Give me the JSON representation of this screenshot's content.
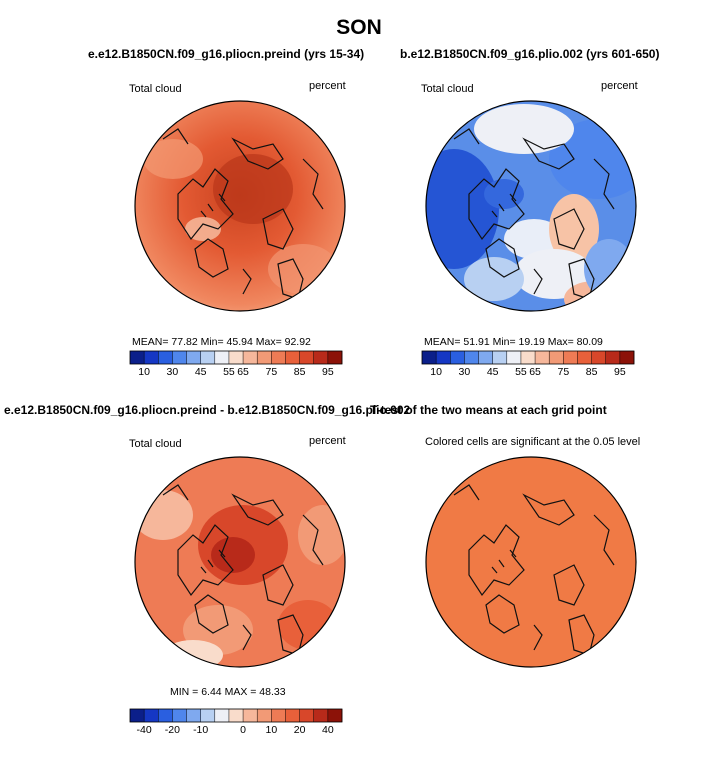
{
  "figure": {
    "title": "SON"
  },
  "panels": [
    {
      "id": "top-left",
      "title": "e.e12.B1850CN.f09_g16.pliocn.preind (yrs 15-34)",
      "left_label": "Total cloud",
      "right_label": "percent",
      "stats": {
        "mean": "77.82",
        "min": "45.94",
        "max": "92.92"
      },
      "stats_text": "MEAN=  77.82   Min=  45.94   Max=  92.92",
      "colorbar": "full"
    },
    {
      "id": "top-right",
      "title": "b.e12.B1850CN.f09_g16.plio.002 (yrs 601-650)",
      "left_label": "Total cloud",
      "right_label": "percent",
      "stats": {
        "mean": "51.91",
        "min": "19.19",
        "max": "80.09"
      },
      "stats_text": "MEAN=  51.91   Min=  19.19   Max=  80.09",
      "colorbar": "full"
    },
    {
      "id": "bottom-left",
      "title": "e.e12.B1850CN.f09_g16.pliocn.preind - b.e12.B1850CN.f09_g16.plio.002",
      "left_label": "Total cloud",
      "right_label": "percent",
      "stats": {
        "min": "6.44",
        "max": "48.33"
      },
      "stats_text": "MIN =   6.44  MAX =  48.33",
      "colorbar": "diff"
    },
    {
      "id": "bottom-right",
      "title": "T-test of the two means at each grid point",
      "subtitle": "Colored cells are significant at the 0.05 level"
    }
  ],
  "colorbars": {
    "full": {
      "colors": [
        "#0b1f8a",
        "#1537c4",
        "#2a5fe0",
        "#4f86ec",
        "#7fa9ef",
        "#b8d0f2",
        "#eef0f6",
        "#f9dccb",
        "#f6b79b",
        "#f29a76",
        "#ee7b55",
        "#e8603a",
        "#d8472a",
        "#b82a1a",
        "#8c1208"
      ],
      "tick_labels": [
        "10",
        "30",
        "45",
        "55",
        "65",
        "75",
        "85",
        "95"
      ]
    },
    "diff": {
      "colors": [
        "#0b1f8a",
        "#1537c4",
        "#2a5fe0",
        "#4f86ec",
        "#7fa9ef",
        "#b8d0f2",
        "#eef0f6",
        "#f9dccb",
        "#f6b79b",
        "#f29a76",
        "#ee7b55",
        "#e8603a",
        "#d8472a",
        "#b82a1a",
        "#8c1208"
      ],
      "tick_labels": [
        "-40",
        "-20",
        "-10",
        "0",
        "10",
        "20",
        "40"
      ]
    }
  },
  "colors": {
    "warm_fill": "#ea6a40",
    "ttest_fill": "#f07a45",
    "cool_fill": "#3f7ae6",
    "coast": "#111111"
  }
}
